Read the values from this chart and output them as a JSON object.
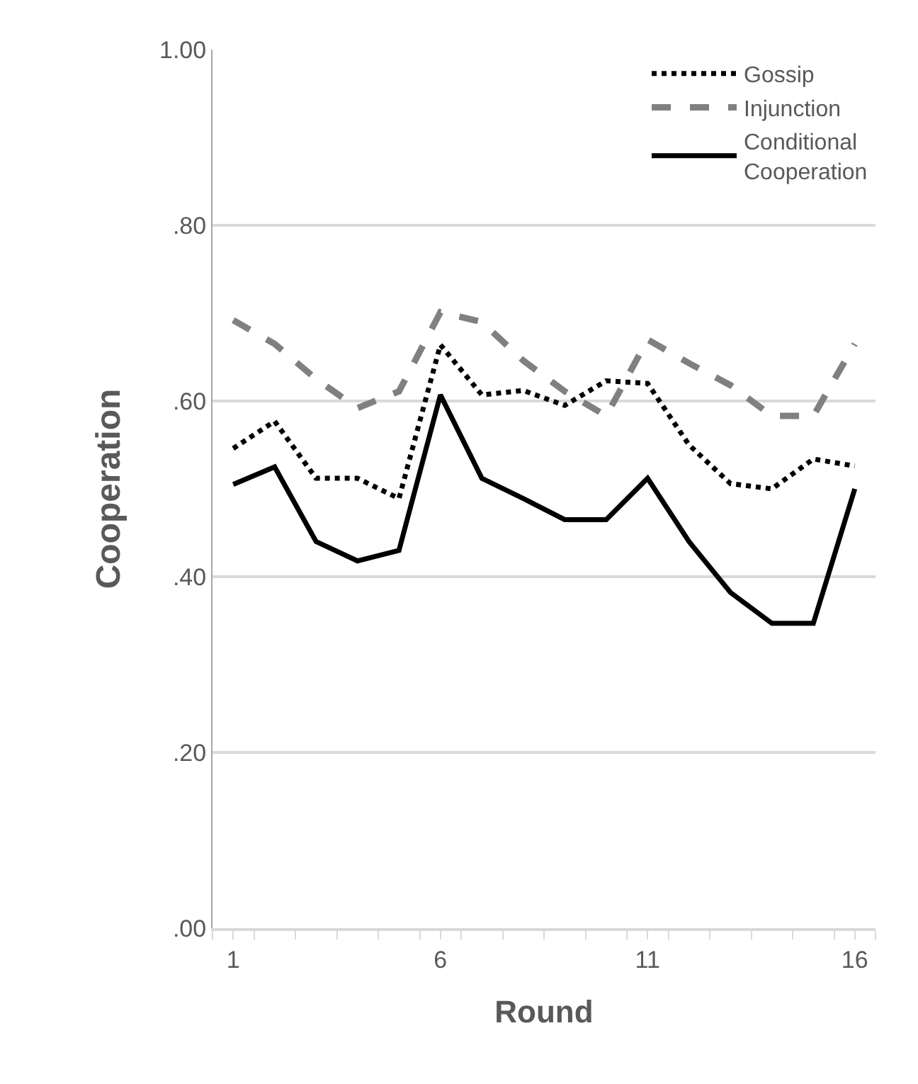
{
  "chart_data": {
    "type": "line",
    "xlabel": "Round",
    "ylabel": "Cooperation",
    "x": [
      1,
      2,
      3,
      4,
      5,
      6,
      7,
      8,
      9,
      10,
      11,
      12,
      13,
      14,
      15,
      16
    ],
    "xlim": [
      0.5,
      16.5
    ],
    "xticks": [
      1,
      6,
      11,
      16
    ],
    "ylim": [
      0,
      1
    ],
    "yticks": [
      {
        "value": 0,
        "label": ".00"
      },
      {
        "value": 0.2,
        "label": ".20"
      },
      {
        "value": 0.4,
        "label": ".40"
      },
      {
        "value": 0.6,
        "label": ".60"
      },
      {
        "value": 0.8,
        "label": ".80"
      },
      {
        "value": 1,
        "label": "1.00"
      }
    ],
    "grid": "y",
    "legend": "top right",
    "marker": "none",
    "series": [
      {
        "name": "Gossip",
        "color": "#000000",
        "line_style": "dotted",
        "values": [
          0.546,
          0.577,
          0.512,
          0.512,
          0.489,
          0.664,
          0.607,
          0.612,
          0.595,
          0.623,
          0.62,
          0.55,
          0.506,
          0.5,
          0.534,
          0.526
        ]
      },
      {
        "name": "Injunction",
        "color": "#808080",
        "line_style": "dashed",
        "values": [
          0.692,
          0.665,
          0.625,
          0.592,
          0.611,
          0.701,
          0.69,
          0.646,
          0.611,
          0.583,
          0.67,
          0.643,
          0.618,
          0.583,
          0.583,
          0.665
        ]
      },
      {
        "name": "Conditional Cooperation",
        "color": "#000000",
        "line_style": "solid",
        "values": [
          0.505,
          0.525,
          0.44,
          0.418,
          0.43,
          0.607,
          0.512,
          0.489,
          0.465,
          0.465,
          0.512,
          0.44,
          0.382,
          0.347,
          0.347,
          0.5
        ]
      }
    ]
  }
}
